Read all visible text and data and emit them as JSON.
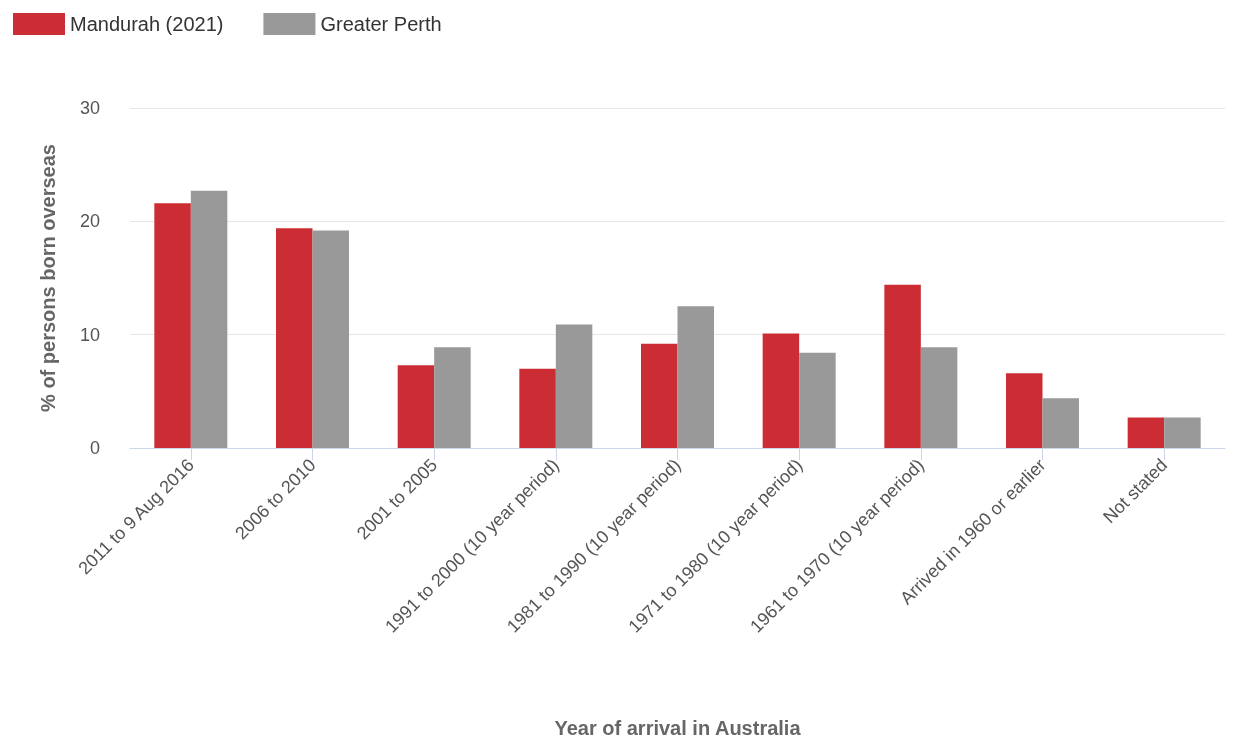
{
  "chart_data": {
    "type": "bar",
    "xlabel": "Year of arrival in Australia",
    "ylabel": "% of persons born overseas",
    "categories": [
      "2011 to 9 Aug 2016",
      "2006 to 2010",
      "2001 to 2005",
      "1991 to 2000 (10 year period)",
      "1981 to 1990 (10 year period)",
      "1971 to 1980 (10 year period)",
      "1961 to 1970 (10 year period)",
      "Arrived in 1960 or earlier",
      "Not stated"
    ],
    "series": [
      {
        "name": "Mandurah (2021)",
        "color": "#cc2c33",
        "values": [
          21.6,
          19.4,
          7.3,
          7.0,
          9.2,
          10.1,
          14.4,
          6.6,
          2.7
        ]
      },
      {
        "name": "Greater Perth",
        "color": "#999999",
        "values": [
          22.7,
          19.2,
          8.9,
          10.9,
          12.5,
          8.4,
          8.9,
          4.4,
          2.7
        ]
      }
    ],
    "ylim": [
      0,
      30
    ],
    "yticks": [
      0,
      10,
      20,
      30
    ],
    "grid": "y",
    "legend": "top left"
  }
}
